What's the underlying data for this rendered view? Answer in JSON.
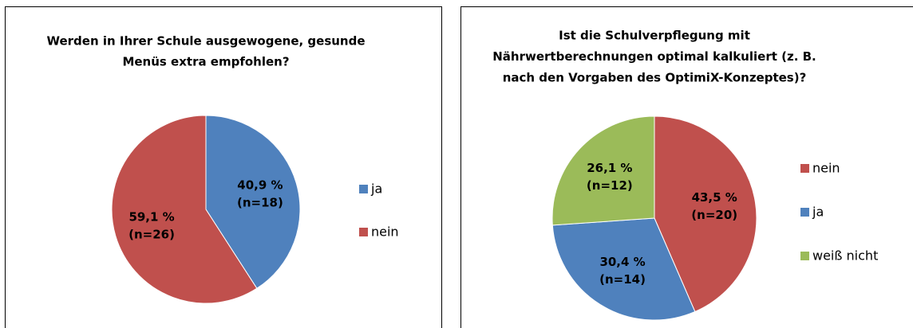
{
  "chart_data": [
    {
      "type": "pie",
      "title": [
        "Werden in Ihrer Schule ausgewogene, gesunde",
        "Menüs extra empfohlen?"
      ],
      "categories": [
        "ja",
        "nein"
      ],
      "values": [
        40.9,
        59.1
      ],
      "value_labels": [
        "40,9 %",
        "59,1 %"
      ],
      "counts": [
        18,
        26
      ],
      "count_labels": [
        "(n=18)",
        "(n=26)"
      ],
      "colors": [
        "#4f81bd",
        "#c0504d"
      ],
      "legend": "right"
    },
    {
      "type": "pie",
      "title": [
        "Ist die Schulverpflegung mit",
        "Nährwertberechnungen optimal kalkuliert (z. B.",
        "nach den Vorgaben des OptimiX-Konzeptes)?"
      ],
      "categories": [
        "nein",
        "ja",
        "weiß nicht"
      ],
      "values": [
        43.5,
        30.4,
        26.1
      ],
      "value_labels": [
        "43,5 %",
        "30,4 %",
        "26,1 %"
      ],
      "counts": [
        20,
        14,
        12
      ],
      "count_labels": [
        "(n=20)",
        "(n=14)",
        "(n=12)"
      ],
      "colors": [
        "#c0504d",
        "#4f81bd",
        "#9bbb59"
      ],
      "legend": "right"
    }
  ]
}
